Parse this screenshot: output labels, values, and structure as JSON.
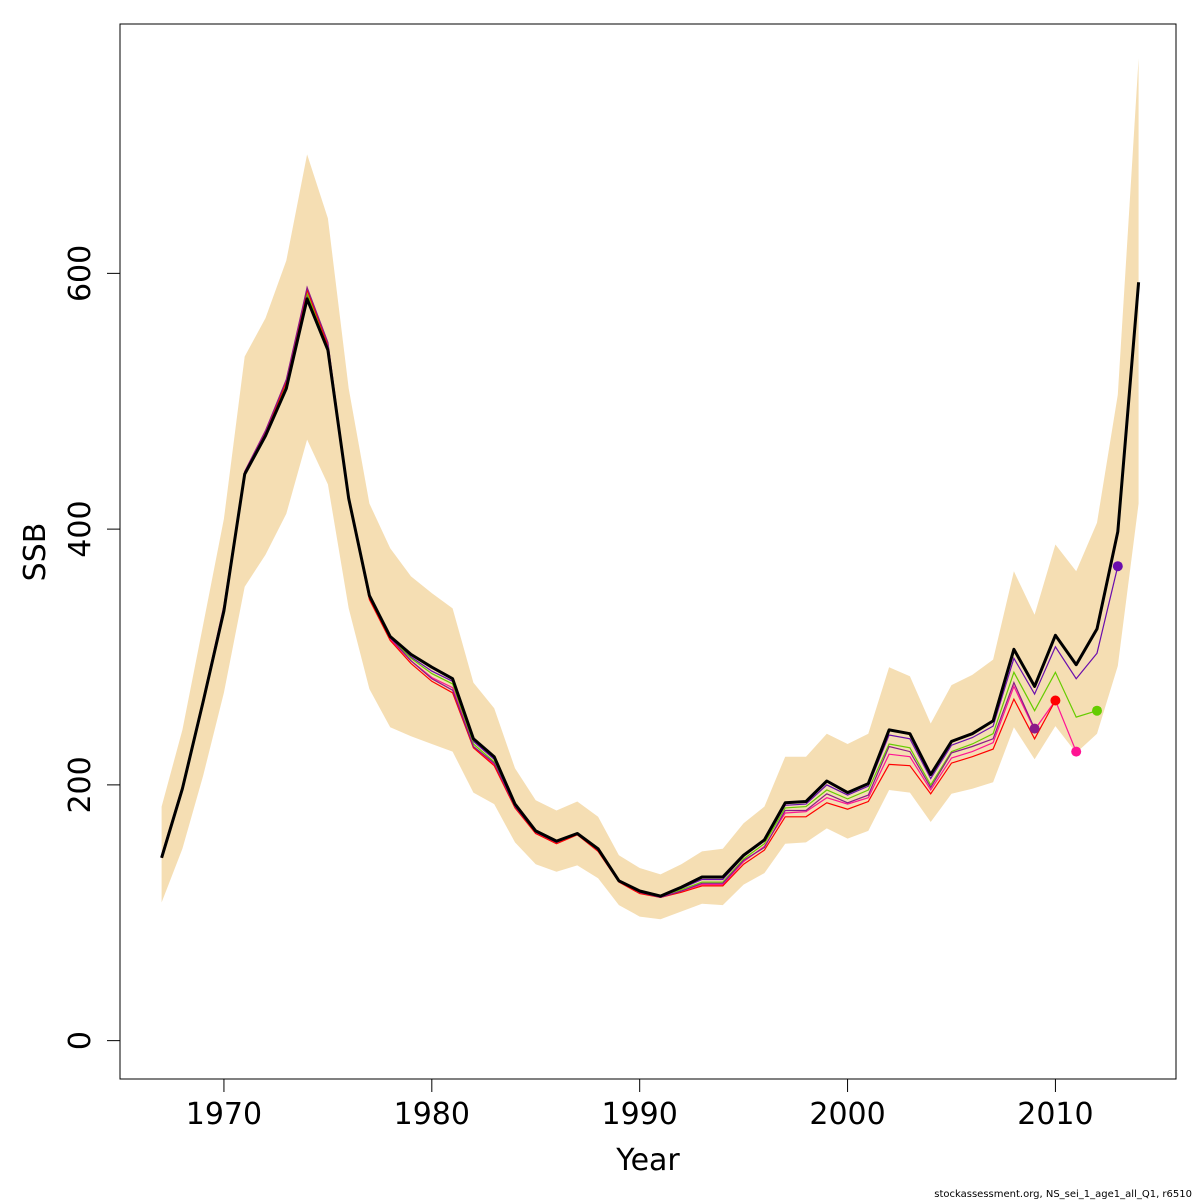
{
  "chart_data": {
    "type": "line",
    "xlabel": "Year",
    "ylabel": "SSB",
    "xlim": [
      1965,
      2015.8
    ],
    "ylim": [
      -30,
      795
    ],
    "x_ticks": [
      1970,
      1980,
      1990,
      2000,
      2010
    ],
    "y_ticks": [
      0,
      200,
      400,
      600
    ],
    "grid": false,
    "legend": "none",
    "footnote": "stockassessment.org, NS_sei_1_age1_all_Q1, r6510",
    "colors": {
      "band": "#f5deb3",
      "main": "#000000",
      "peel1": "#8b1a89",
      "peel2": "#ff0000",
      "peel3": "#ff1493",
      "peel4": "#66cc00",
      "peel5": "#6a0dad"
    },
    "years": [
      1967,
      1968,
      1969,
      1970,
      1971,
      1972,
      1973,
      1974,
      1975,
      1976,
      1977,
      1978,
      1979,
      1980,
      1981,
      1982,
      1983,
      1984,
      1985,
      1986,
      1987,
      1988,
      1989,
      1990,
      1991,
      1992,
      1993,
      1994,
      1995,
      1996,
      1997,
      1998,
      1999,
      2000,
      2001,
      2002,
      2003,
      2004,
      2005,
      2006,
      2007,
      2008,
      2009,
      2010,
      2011,
      2012,
      2013,
      2014
    ],
    "ci_lower": [
      108,
      150,
      207,
      272,
      355,
      380,
      412,
      470,
      435,
      338,
      275,
      245,
      238,
      232,
      226,
      194,
      185,
      155,
      138,
      132,
      137,
      127,
      106,
      97,
      95,
      101,
      107,
      106,
      122,
      131,
      154,
      155,
      166,
      158,
      164,
      196,
      194,
      171,
      193,
      197,
      202,
      245,
      220,
      246,
      225,
      240,
      293,
      420
    ],
    "ci_upper": [
      183,
      243,
      325,
      408,
      535,
      565,
      610,
      693,
      643,
      510,
      420,
      385,
      363,
      350,
      338,
      280,
      260,
      213,
      188,
      180,
      187,
      175,
      145,
      135,
      130,
      138,
      148,
      150,
      170,
      183,
      222,
      222,
      240,
      232,
      240,
      292,
      285,
      248,
      278,
      286,
      298,
      367,
      333,
      388,
      367,
      405,
      505,
      768
    ],
    "ssb": [
      143,
      197,
      265,
      336,
      443,
      473,
      510,
      580,
      540,
      424,
      348,
      316,
      302,
      292,
      283,
      236,
      222,
      185,
      164,
      156,
      162,
      150,
      125,
      117,
      113,
      120,
      128,
      128,
      145,
      157,
      186,
      187,
      203,
      194,
      201,
      243,
      240,
      208,
      234,
      240,
      250,
      306,
      277,
      317,
      294,
      322,
      398,
      593
    ],
    "peels": [
      {
        "color_key": "peel5",
        "end_year": 2013,
        "values": [
          144,
          197,
          264,
          336,
          443,
          474,
          512,
          582,
          541,
          423,
          347,
          316,
          300,
          289,
          281,
          234,
          220,
          185,
          164,
          155,
          162,
          150,
          125,
          117,
          113,
          119,
          126,
          126,
          144,
          156,
          184,
          185,
          200,
          192,
          199,
          239,
          236,
          205,
          231,
          237,
          246,
          299,
          271,
          308,
          283,
          303,
          371
        ]
      },
      {
        "color_key": "peel4",
        "end_year": 2012,
        "values": [
          144,
          198,
          265,
          338,
          444,
          476,
          514,
          584,
          543,
          424,
          347,
          315,
          299,
          287,
          279,
          232,
          218,
          184,
          163,
          155,
          162,
          149,
          125,
          116,
          113,
          118,
          124,
          124,
          142,
          154,
          182,
          183,
          196,
          189,
          196,
          232,
          229,
          200,
          226,
          232,
          240,
          288,
          258,
          288,
          253,
          258
        ]
      },
      {
        "color_key": "peel3",
        "end_year": 2011,
        "values": [
          144,
          198,
          266,
          339,
          445,
          477,
          516,
          588,
          545,
          424,
          347,
          314,
          297,
          284,
          276,
          230,
          216,
          183,
          162,
          155,
          162,
          149,
          125,
          116,
          112,
          117,
          122,
          122,
          140,
          152,
          178,
          179,
          190,
          185,
          190,
          224,
          222,
          196,
          221,
          226,
          233,
          277,
          243,
          266,
          226
        ]
      },
      {
        "color_key": "peel2",
        "end_year": 2010,
        "values": [
          143,
          198,
          266,
          339,
          444,
          476,
          515,
          587,
          544,
          423,
          345,
          313,
          295,
          281,
          272,
          229,
          215,
          182,
          162,
          154,
          161,
          148,
          124,
          115,
          112,
          116,
          121,
          121,
          138,
          149,
          175,
          175,
          186,
          181,
          187,
          216,
          215,
          193,
          217,
          222,
          228,
          267,
          236,
          266
        ]
      },
      {
        "color_key": "peel1",
        "end_year": 2009,
        "values": [
          145,
          199,
          267,
          340,
          445,
          477,
          517,
          589,
          546,
          425,
          347,
          315,
          297,
          283,
          274,
          230,
          217,
          183,
          163,
          155,
          162,
          149,
          125,
          116,
          112,
          117,
          123,
          123,
          141,
          151,
          180,
          180,
          193,
          186,
          192,
          230,
          226,
          198,
          225,
          230,
          236,
          280,
          244
        ]
      }
    ]
  }
}
